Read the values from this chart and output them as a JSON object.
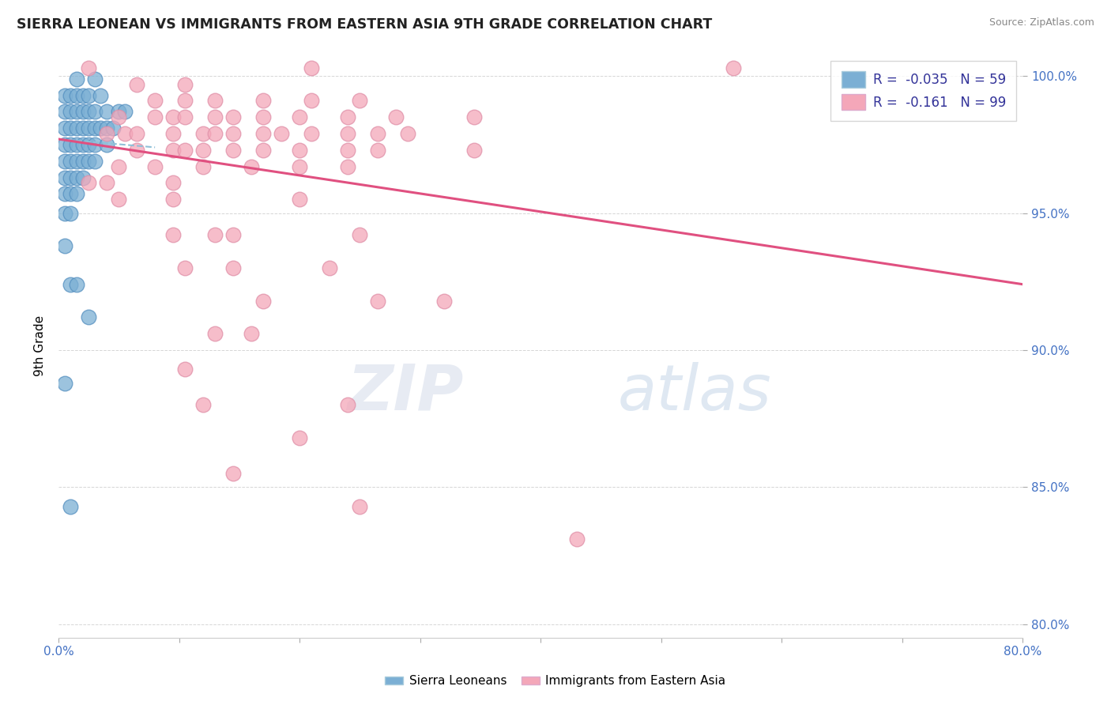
{
  "title": "SIERRA LEONEAN VS IMMIGRANTS FROM EASTERN ASIA 9TH GRADE CORRELATION CHART",
  "source": "Source: ZipAtlas.com",
  "xlabel": "",
  "ylabel": "9th Grade",
  "xlim": [
    0.0,
    0.8
  ],
  "ylim": [
    0.795,
    1.008
  ],
  "xtick_labels": [
    "0.0%",
    "",
    "",
    "",
    "",
    "",
    "",
    "",
    "80.0%"
  ],
  "xtick_vals": [
    0.0,
    0.1,
    0.2,
    0.3,
    0.4,
    0.5,
    0.6,
    0.7,
    0.8
  ],
  "ytick_labels": [
    "80.0%",
    "85.0%",
    "90.0%",
    "95.0%",
    "100.0%"
  ],
  "ytick_vals": [
    0.8,
    0.85,
    0.9,
    0.95,
    1.0
  ],
  "legend_R_blue": "-0.035",
  "legend_N_blue": "59",
  "legend_R_pink": "-0.161",
  "legend_N_pink": "99",
  "blue_color": "#7BAFD4",
  "pink_color": "#F4A7B9",
  "blue_edge_color": "#5590C0",
  "pink_edge_color": "#E090A8",
  "pink_line_color": "#E05080",
  "dashed_line_color": "#90C0D8",
  "watermark_zip": "ZIP",
  "watermark_atlas": "atlas",
  "blue_points": [
    [
      0.015,
      0.999
    ],
    [
      0.03,
      0.999
    ],
    [
      0.005,
      0.993
    ],
    [
      0.01,
      0.993
    ],
    [
      0.015,
      0.993
    ],
    [
      0.02,
      0.993
    ],
    [
      0.025,
      0.993
    ],
    [
      0.035,
      0.993
    ],
    [
      0.005,
      0.987
    ],
    [
      0.01,
      0.987
    ],
    [
      0.015,
      0.987
    ],
    [
      0.02,
      0.987
    ],
    [
      0.025,
      0.987
    ],
    [
      0.03,
      0.987
    ],
    [
      0.04,
      0.987
    ],
    [
      0.05,
      0.987
    ],
    [
      0.055,
      0.987
    ],
    [
      0.005,
      0.981
    ],
    [
      0.01,
      0.981
    ],
    [
      0.015,
      0.981
    ],
    [
      0.02,
      0.981
    ],
    [
      0.025,
      0.981
    ],
    [
      0.03,
      0.981
    ],
    [
      0.035,
      0.981
    ],
    [
      0.04,
      0.981
    ],
    [
      0.045,
      0.981
    ],
    [
      0.005,
      0.975
    ],
    [
      0.01,
      0.975
    ],
    [
      0.015,
      0.975
    ],
    [
      0.02,
      0.975
    ],
    [
      0.025,
      0.975
    ],
    [
      0.03,
      0.975
    ],
    [
      0.04,
      0.975
    ],
    [
      0.005,
      0.969
    ],
    [
      0.01,
      0.969
    ],
    [
      0.015,
      0.969
    ],
    [
      0.02,
      0.969
    ],
    [
      0.025,
      0.969
    ],
    [
      0.03,
      0.969
    ],
    [
      0.005,
      0.963
    ],
    [
      0.01,
      0.963
    ],
    [
      0.015,
      0.963
    ],
    [
      0.02,
      0.963
    ],
    [
      0.005,
      0.957
    ],
    [
      0.01,
      0.957
    ],
    [
      0.015,
      0.957
    ],
    [
      0.005,
      0.95
    ],
    [
      0.01,
      0.95
    ],
    [
      0.005,
      0.938
    ],
    [
      0.01,
      0.924
    ],
    [
      0.015,
      0.924
    ],
    [
      0.025,
      0.912
    ],
    [
      0.005,
      0.888
    ],
    [
      0.01,
      0.843
    ]
  ],
  "pink_points": [
    [
      0.025,
      1.003
    ],
    [
      0.21,
      1.003
    ],
    [
      0.56,
      1.003
    ],
    [
      0.065,
      0.997
    ],
    [
      0.105,
      0.997
    ],
    [
      0.08,
      0.991
    ],
    [
      0.105,
      0.991
    ],
    [
      0.13,
      0.991
    ],
    [
      0.17,
      0.991
    ],
    [
      0.21,
      0.991
    ],
    [
      0.25,
      0.991
    ],
    [
      0.05,
      0.985
    ],
    [
      0.08,
      0.985
    ],
    [
      0.095,
      0.985
    ],
    [
      0.105,
      0.985
    ],
    [
      0.13,
      0.985
    ],
    [
      0.145,
      0.985
    ],
    [
      0.17,
      0.985
    ],
    [
      0.2,
      0.985
    ],
    [
      0.24,
      0.985
    ],
    [
      0.28,
      0.985
    ],
    [
      0.345,
      0.985
    ],
    [
      0.04,
      0.979
    ],
    [
      0.055,
      0.979
    ],
    [
      0.065,
      0.979
    ],
    [
      0.095,
      0.979
    ],
    [
      0.12,
      0.979
    ],
    [
      0.13,
      0.979
    ],
    [
      0.145,
      0.979
    ],
    [
      0.17,
      0.979
    ],
    [
      0.185,
      0.979
    ],
    [
      0.21,
      0.979
    ],
    [
      0.24,
      0.979
    ],
    [
      0.265,
      0.979
    ],
    [
      0.29,
      0.979
    ],
    [
      0.065,
      0.973
    ],
    [
      0.095,
      0.973
    ],
    [
      0.105,
      0.973
    ],
    [
      0.12,
      0.973
    ],
    [
      0.145,
      0.973
    ],
    [
      0.17,
      0.973
    ],
    [
      0.2,
      0.973
    ],
    [
      0.24,
      0.973
    ],
    [
      0.265,
      0.973
    ],
    [
      0.345,
      0.973
    ],
    [
      0.05,
      0.967
    ],
    [
      0.08,
      0.967
    ],
    [
      0.12,
      0.967
    ],
    [
      0.16,
      0.967
    ],
    [
      0.2,
      0.967
    ],
    [
      0.24,
      0.967
    ],
    [
      0.025,
      0.961
    ],
    [
      0.04,
      0.961
    ],
    [
      0.095,
      0.961
    ],
    [
      0.05,
      0.955
    ],
    [
      0.095,
      0.955
    ],
    [
      0.2,
      0.955
    ],
    [
      0.095,
      0.942
    ],
    [
      0.13,
      0.942
    ],
    [
      0.145,
      0.942
    ],
    [
      0.25,
      0.942
    ],
    [
      0.105,
      0.93
    ],
    [
      0.145,
      0.93
    ],
    [
      0.225,
      0.93
    ],
    [
      0.17,
      0.918
    ],
    [
      0.265,
      0.918
    ],
    [
      0.32,
      0.918
    ],
    [
      0.13,
      0.906
    ],
    [
      0.16,
      0.906
    ],
    [
      0.105,
      0.893
    ],
    [
      0.12,
      0.88
    ],
    [
      0.24,
      0.88
    ],
    [
      0.2,
      0.868
    ],
    [
      0.145,
      0.855
    ],
    [
      0.25,
      0.843
    ],
    [
      0.43,
      0.831
    ]
  ],
  "blue_trend": [
    0.0,
    0.977,
    0.08,
    0.974
  ],
  "pink_trend": [
    0.0,
    0.977,
    0.8,
    0.924
  ]
}
